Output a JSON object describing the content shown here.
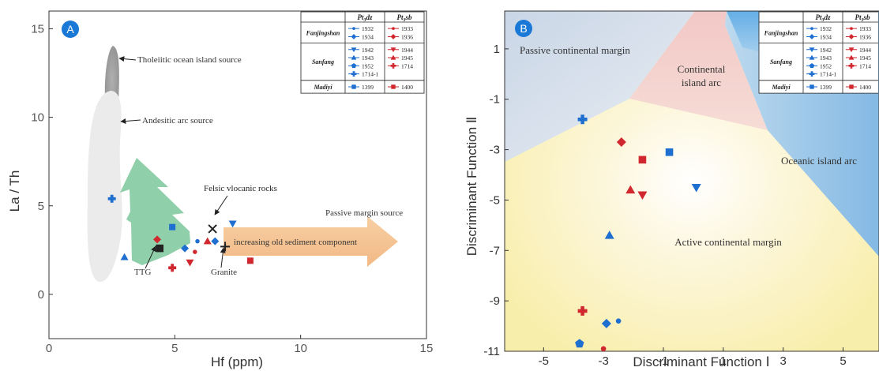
{
  "chart_data": [
    {
      "panel": "A",
      "type": "scatter",
      "xlabel": "Hf (ppm)",
      "ylabel": "La / Th",
      "xlim": [
        0,
        15
      ],
      "ylim": [
        -2.5,
        16
      ],
      "xticks": [
        "0",
        "5",
        "10",
        "15"
      ],
      "yticks": [
        "0",
        "5",
        "10",
        "15"
      ],
      "annotations": {
        "tholeiitic": "Tholeiitic ocean island source",
        "andesitic": "Andesitic arc source",
        "felsic": "Felsic vlocanic rocks",
        "passive": "Passive margin source",
        "sediment": "increasing old sediment component",
        "ttg": "TTG",
        "granite": "Granite"
      },
      "reference_points": [
        {
          "label": "Felsic vlocanic rocks",
          "x": 6.5,
          "y": 3.7
        },
        {
          "label": "Granite",
          "x": 7.0,
          "y": 2.7
        },
        {
          "label": "TTG",
          "x": 4.4,
          "y": 2.6
        }
      ],
      "points": [
        {
          "formation": "Pt3dz",
          "sample": "1714-1",
          "x": 2.5,
          "y": 5.4
        },
        {
          "formation": "Pt3dz",
          "sample": "1399",
          "x": 4.9,
          "y": 3.8
        },
        {
          "formation": "Pt3dz",
          "sample": "1943",
          "x": 3.0,
          "y": 2.1
        },
        {
          "formation": "Pt3dz",
          "sample": "1934",
          "x": 5.4,
          "y": 2.6
        },
        {
          "formation": "Pt3dz",
          "sample": "1932",
          "x": 5.9,
          "y": 3.0
        },
        {
          "formation": "Pt3dz",
          "sample": "1934",
          "x": 6.6,
          "y": 3.0
        },
        {
          "formation": "Pt3dz",
          "sample": "1942",
          "x": 7.3,
          "y": 4.0
        },
        {
          "formation": "Pt3sb",
          "sample": "1936",
          "x": 4.3,
          "y": 3.1
        },
        {
          "formation": "Pt3sb",
          "sample": "1714",
          "x": 4.9,
          "y": 1.5
        },
        {
          "formation": "Pt3sb",
          "sample": "1944",
          "x": 5.6,
          "y": 1.8
        },
        {
          "formation": "Pt3sb",
          "sample": "1933",
          "x": 5.8,
          "y": 2.4
        },
        {
          "formation": "Pt3sb",
          "sample": "1945",
          "x": 6.3,
          "y": 3.0
        },
        {
          "formation": "Pt3sb",
          "sample": "1400",
          "x": 8.0,
          "y": 1.9
        }
      ]
    },
    {
      "panel": "B",
      "type": "scatter",
      "xlabel": "Discriminant Function Ⅰ",
      "ylabel": "Discriminant Function Ⅱ",
      "xlim": [
        -6.3,
        6.2
      ],
      "ylim": [
        -11,
        2.5
      ],
      "xticks": [
        "-5",
        "-3",
        "-1",
        "1",
        "3",
        "5"
      ],
      "yticks": [
        "1",
        "-1",
        "-3",
        "-5",
        "-7",
        "-9",
        "-11"
      ],
      "fields": {
        "passive": "Passive continental margin",
        "island_arc_1": "Continental",
        "island_arc_2": "island arc",
        "oceanic": "Oceanic island arc",
        "active": "Active continental margin"
      },
      "points": [
        {
          "formation": "Pt3dz",
          "sample": "1714-1",
          "x": -3.7,
          "y": -1.8
        },
        {
          "formation": "Pt3dz",
          "sample": "1399",
          "x": -0.8,
          "y": -3.1
        },
        {
          "formation": "Pt3dz",
          "sample": "1942",
          "x": 0.1,
          "y": -4.5
        },
        {
          "formation": "Pt3dz",
          "sample": "1943",
          "x": -2.8,
          "y": -6.4
        },
        {
          "formation": "Pt3dz",
          "sample": "1932",
          "x": -2.5,
          "y": -9.8
        },
        {
          "formation": "Pt3dz",
          "sample": "1934",
          "x": -2.9,
          "y": -9.9
        },
        {
          "formation": "Pt3dz",
          "sample": "1952",
          "x": -3.8,
          "y": -10.7
        },
        {
          "formation": "Pt3sb",
          "sample": "1936",
          "x": -2.4,
          "y": -2.7
        },
        {
          "formation": "Pt3sb",
          "sample": "1400",
          "x": -1.7,
          "y": -3.4
        },
        {
          "formation": "Pt3sb",
          "sample": "1945",
          "x": -2.1,
          "y": -4.6
        },
        {
          "formation": "Pt3sb",
          "sample": "1944",
          "x": -1.7,
          "y": -4.8
        },
        {
          "formation": "Pt3sb",
          "sample": "1714",
          "x": -3.7,
          "y": -9.4
        },
        {
          "formation": "Pt3sb",
          "sample": "1933",
          "x": -3.0,
          "y": -10.9
        }
      ]
    }
  ],
  "panel_letters": {
    "a": "A",
    "b": "B"
  },
  "legend": {
    "header_dz_main": "Pt",
    "header_dz_sub": "3",
    "header_dz_tail": "dz",
    "header_sb_main": "Pt",
    "header_sb_sub": "3",
    "header_sb_tail": "sb",
    "groups": [
      {
        "name": "Fanjingshan",
        "dz": [
          {
            "sample": "1932",
            "shape": "circle-sm"
          },
          {
            "sample": "1934",
            "shape": "diamond"
          }
        ],
        "sb": [
          {
            "sample": "1933",
            "shape": "circle-sm"
          },
          {
            "sample": "1936",
            "shape": "diamond"
          }
        ]
      },
      {
        "name": "Sanfang",
        "dz": [
          {
            "sample": "1942",
            "shape": "tri-down"
          },
          {
            "sample": "1943",
            "shape": "tri-up"
          },
          {
            "sample": "1952",
            "shape": "pentagon"
          },
          {
            "sample": "1714-1",
            "shape": "cross"
          }
        ],
        "sb": [
          {
            "sample": "1944",
            "shape": "tri-down"
          },
          {
            "sample": "1945",
            "shape": "tri-up"
          },
          {
            "sample": "1714",
            "shape": "cross"
          }
        ]
      },
      {
        "name": "Madiyi",
        "dz": [
          {
            "sample": "1399",
            "shape": "square"
          }
        ],
        "sb": [
          {
            "sample": "1400",
            "shape": "square"
          }
        ]
      }
    ]
  },
  "colors": {
    "dz": "#1f6fd1",
    "sb": "#d0282e",
    "ref": "#222222",
    "panel_badge": "#1a78d6"
  }
}
